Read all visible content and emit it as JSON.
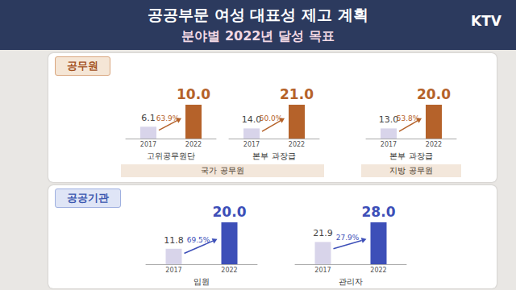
{
  "page": {
    "title": "공공부문 여성 대표성 제고 계획",
    "subtitle": "분야별 2022년 달성 목표",
    "logo": "KTV"
  },
  "chart_data": [
    {
      "type": "bar",
      "title": "고위공무원단",
      "section": "공무원",
      "group": "국가 공무원",
      "categories": [
        "2017",
        "2022"
      ],
      "values": [
        6.1,
        10.0
      ],
      "value_labels": [
        "6.1",
        "10.0"
      ],
      "colors": [
        "#d8d4ea",
        "#b5622a"
      ],
      "annotation": "63.9%",
      "ylim": [
        4,
        10
      ],
      "data_labels": true,
      "tick_labels": "x"
    },
    {
      "type": "bar",
      "title": "본부 과장급",
      "section": "공무원",
      "group": "국가 공무원",
      "categories": [
        "2017",
        "2022"
      ],
      "values": [
        14.0,
        21.0
      ],
      "value_labels": [
        "14.0",
        "21.0"
      ],
      "colors": [
        "#d8d4ea",
        "#b5622a"
      ],
      "annotation": "50.0%",
      "ylim": [
        11,
        21
      ],
      "data_labels": true,
      "tick_labels": "x"
    },
    {
      "type": "bar",
      "title": "본부 과장급",
      "section": "공무원",
      "group": "지방 공무원",
      "categories": [
        "2017",
        "2022"
      ],
      "values": [
        13.0,
        20.0
      ],
      "value_labels": [
        "13.0",
        "20.0"
      ],
      "colors": [
        "#d8d4ea",
        "#b5622a"
      ],
      "annotation": "53.8%",
      "ylim": [
        10,
        20
      ],
      "data_labels": true,
      "tick_labels": "x"
    },
    {
      "type": "bar",
      "title": "임원",
      "section": "공공기관",
      "categories": [
        "2017",
        "2022"
      ],
      "values": [
        11.8,
        20.0
      ],
      "value_labels": [
        "11.8",
        "20.0"
      ],
      "colors": [
        "#d8d4ea",
        "#3d4fb8"
      ],
      "annotation": "69.5%",
      "ylim": [
        7,
        20
      ],
      "data_labels": true,
      "tick_labels": "x"
    },
    {
      "type": "bar",
      "title": "관리자",
      "section": "공공기관",
      "categories": [
        "2017",
        "2022"
      ],
      "values": [
        21.9,
        28.0
      ],
      "value_labels": [
        "21.9",
        "28.0"
      ],
      "colors": [
        "#d8d4ea",
        "#3d4fb8"
      ],
      "annotation": "27.9%",
      "ylim": [
        15,
        28
      ],
      "data_labels": true,
      "tick_labels": "x"
    }
  ]
}
